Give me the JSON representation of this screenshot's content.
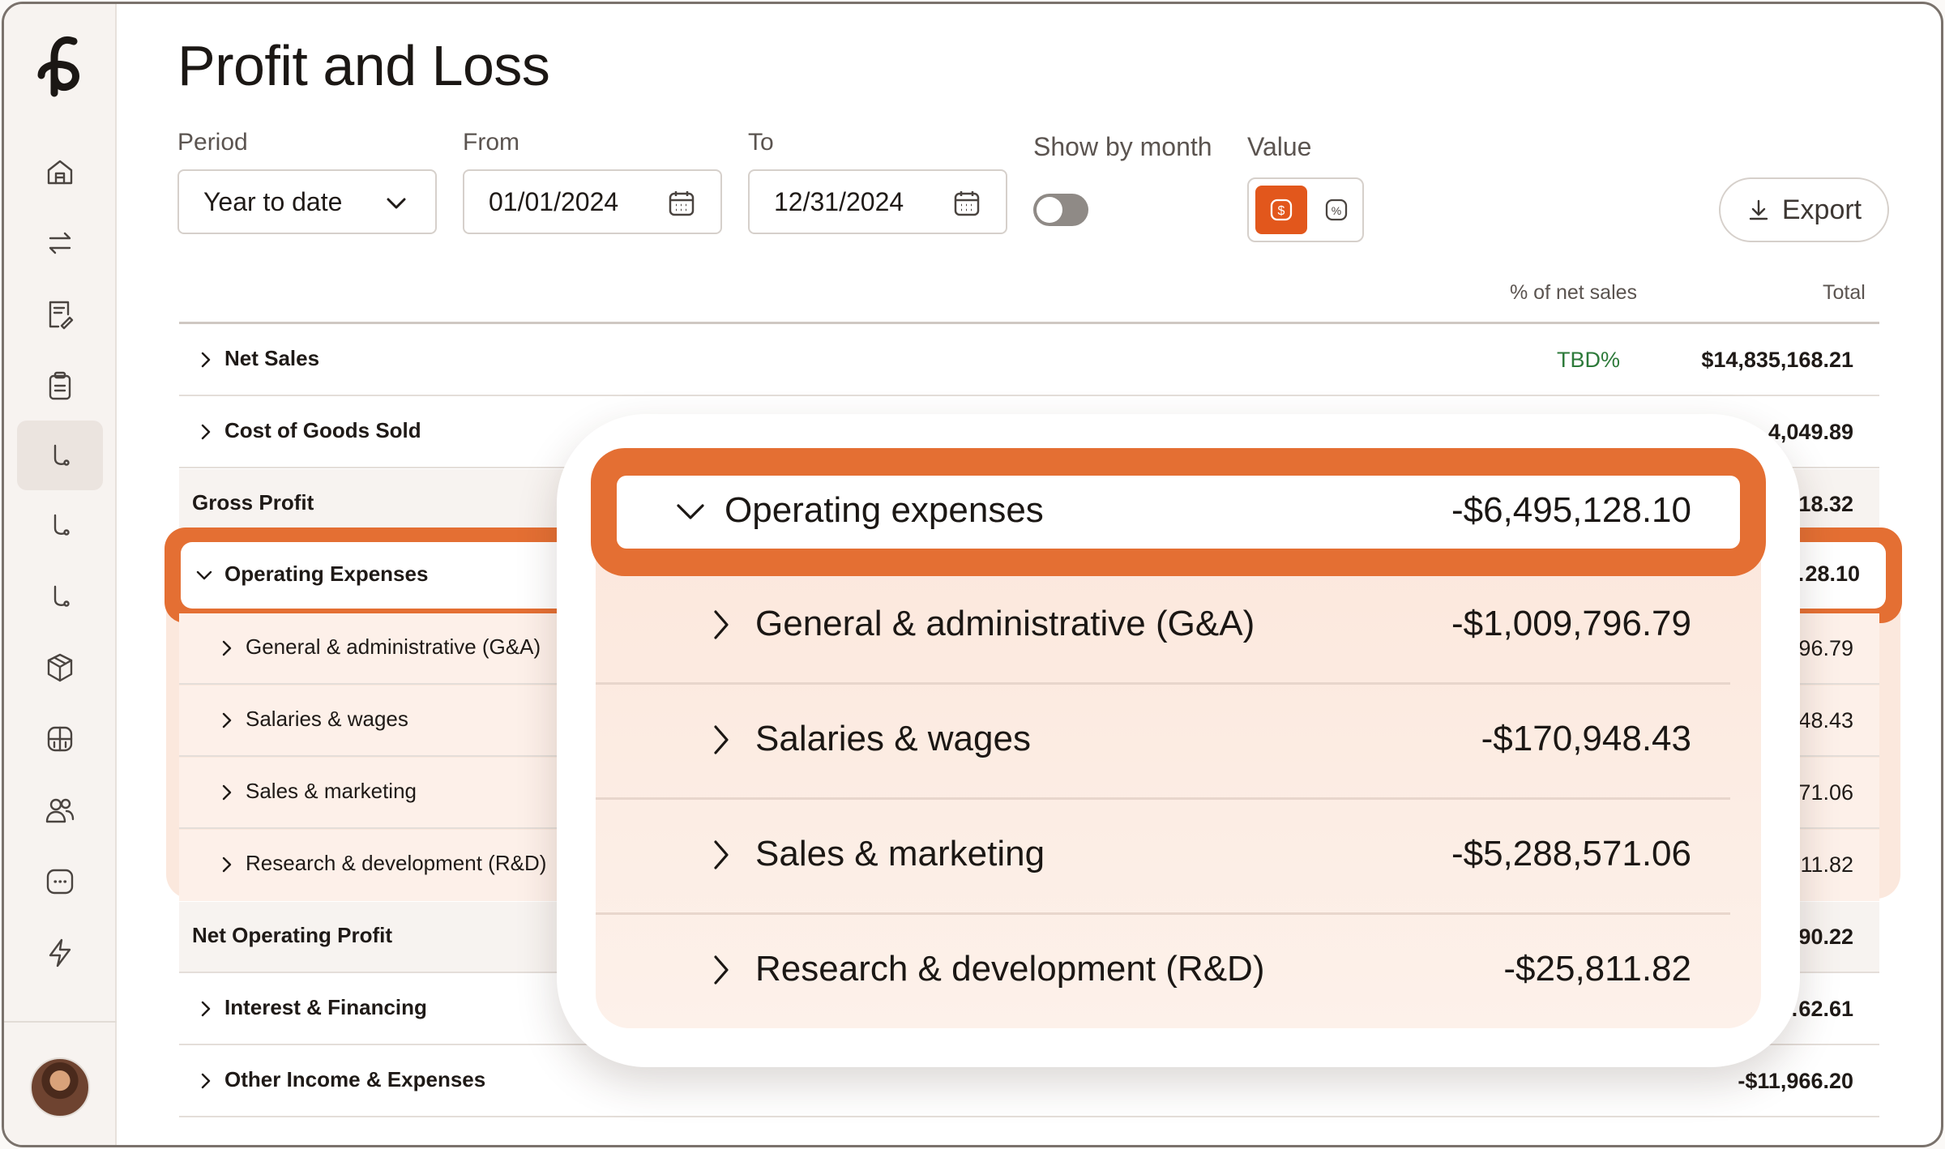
{
  "page": {
    "title": "Profit and Loss"
  },
  "filters": {
    "period_label": "Period",
    "period_value": "Year to date",
    "from_label": "From",
    "from_value": "01/01/2024",
    "to_label": "To",
    "to_value": "12/31/2024",
    "show_by_month_label": "Show by month",
    "show_by_month_on": false,
    "value_label": "Value",
    "value_mode": "dollar",
    "export_label": "Export"
  },
  "table": {
    "columns": {
      "pct": "% of net sales",
      "total": "Total"
    },
    "rows": [
      {
        "label": "Net Sales",
        "pct": "TBD%",
        "total": "$14,835,168.21",
        "type": "expandable"
      },
      {
        "label": "Cost of Goods Sold",
        "total": "…4,049.89",
        "type": "expandable"
      },
      {
        "label": "Gross Profit",
        "total": "…18.32",
        "type": "total"
      },
      {
        "label": "Operating Expenses",
        "total": "…28.10",
        "type": "expanded"
      },
      {
        "label": "General & administrative (G&A)",
        "total": "…96.79",
        "type": "sub"
      },
      {
        "label": "Salaries & wages",
        "total": "…48.43",
        "type": "sub"
      },
      {
        "label": "Sales & marketing",
        "total": "…71.06",
        "type": "sub"
      },
      {
        "label": "Research & development (R&D)",
        "total": "…11.82",
        "type": "sub"
      },
      {
        "label": "Net Operating Profit",
        "total": "…90.22",
        "type": "total"
      },
      {
        "label": "Interest & Financing",
        "total": "…62.61",
        "type": "expandable"
      },
      {
        "label": "Other Income & Expenses",
        "total": "-$11,966.20",
        "type": "expandable"
      }
    ]
  },
  "zoom": {
    "header": {
      "label": "Operating expenses",
      "value": "-$6,495,128.10"
    },
    "rows": [
      {
        "label": "General & administrative (G&A)",
        "value": "-$1,009,796.79"
      },
      {
        "label": "Salaries & wages",
        "value": "-$170,948.43"
      },
      {
        "label": "Sales & marketing",
        "value": "-$5,288,571.06"
      },
      {
        "label": "Research & development (R&D)",
        "value": "-$25,811.82"
      }
    ]
  },
  "colors": {
    "accent": "#e46f33",
    "positive": "#2d7a3a"
  },
  "icons": [
    "logo-icon",
    "home-icon",
    "transfer-icon",
    "invoice-icon",
    "clipboard-icon",
    "route-icon",
    "box-icon",
    "grid-icon",
    "people-icon",
    "chat-icon",
    "bolt-icon",
    "calendar-icon",
    "chevron-down-icon",
    "chevron-right-icon",
    "download-icon",
    "dollar-icon",
    "percent-icon"
  ]
}
